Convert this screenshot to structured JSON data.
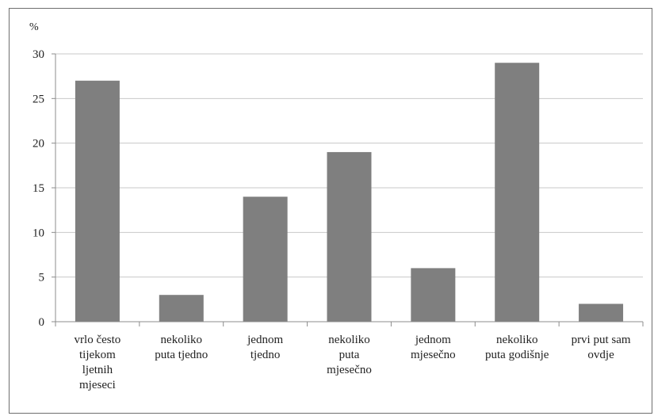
{
  "chart_data": {
    "type": "bar",
    "ylabel": "%",
    "ylim": [
      0,
      30
    ],
    "yticks": [
      0,
      5,
      10,
      15,
      20,
      25,
      30
    ],
    "grid": true,
    "categories": [
      [
        "vrlo često",
        "tijekom",
        "ljetnih",
        "mjeseci"
      ],
      [
        "nekoliko",
        "puta tjedno"
      ],
      [
        "jednom",
        "tjedno"
      ],
      [
        "nekoliko",
        "puta",
        "mjesečno"
      ],
      [
        "jednom",
        "mjesečno"
      ],
      [
        "nekoliko",
        "puta godišnje"
      ],
      [
        "prvi put sam",
        "ovdje"
      ]
    ],
    "values": [
      27,
      3,
      14,
      19,
      6,
      29,
      2
    ],
    "bar_color": "#7f7f7f",
    "grid_color": "#c8c8c8",
    "axis_color": "#8c8c8c"
  }
}
